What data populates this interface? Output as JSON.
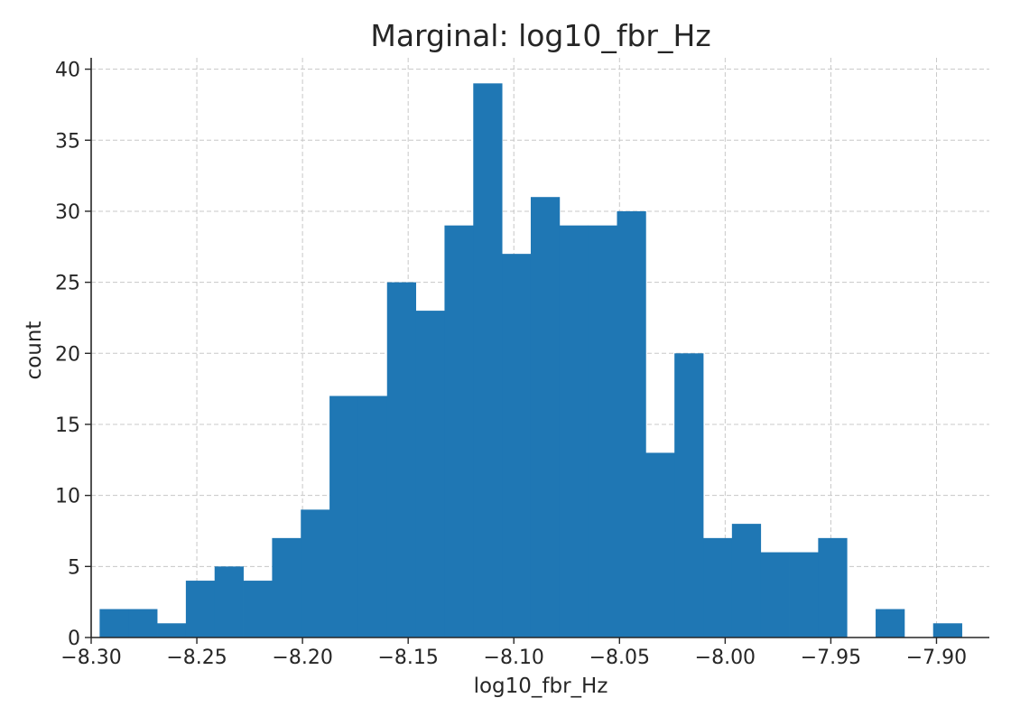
{
  "chart_data": {
    "type": "bar",
    "title": "Marginal: log10_fbr_Hz",
    "xlabel": "log10_fbr_Hz",
    "ylabel": "count",
    "xlim": [
      -8.3,
      -7.875
    ],
    "ylim": [
      0,
      40.8
    ],
    "xticks": [
      -8.3,
      -8.25,
      -8.2,
      -8.15,
      -8.1,
      -8.05,
      -8.0,
      -7.95,
      -7.9
    ],
    "xtick_labels": [
      "−8.30",
      "−8.25",
      "−8.20",
      "−8.15",
      "−8.10",
      "−8.05",
      "−8.00",
      "−7.95",
      "−7.90"
    ],
    "yticks": [
      0,
      5,
      10,
      15,
      20,
      25,
      30,
      35,
      40
    ],
    "ytick_labels": [
      "0",
      "5",
      "10",
      "15",
      "20",
      "25",
      "30",
      "35",
      "40"
    ],
    "grid": true,
    "bar_color": "#1f77b4",
    "bin_start": -8.296,
    "bin_width": 0.0136,
    "values": [
      2,
      2,
      1,
      4,
      5,
      4,
      7,
      9,
      17,
      17,
      25,
      23,
      29,
      39,
      27,
      31,
      29,
      29,
      30,
      13,
      20,
      7,
      8,
      6,
      6,
      7,
      0,
      2,
      0,
      1
    ]
  }
}
